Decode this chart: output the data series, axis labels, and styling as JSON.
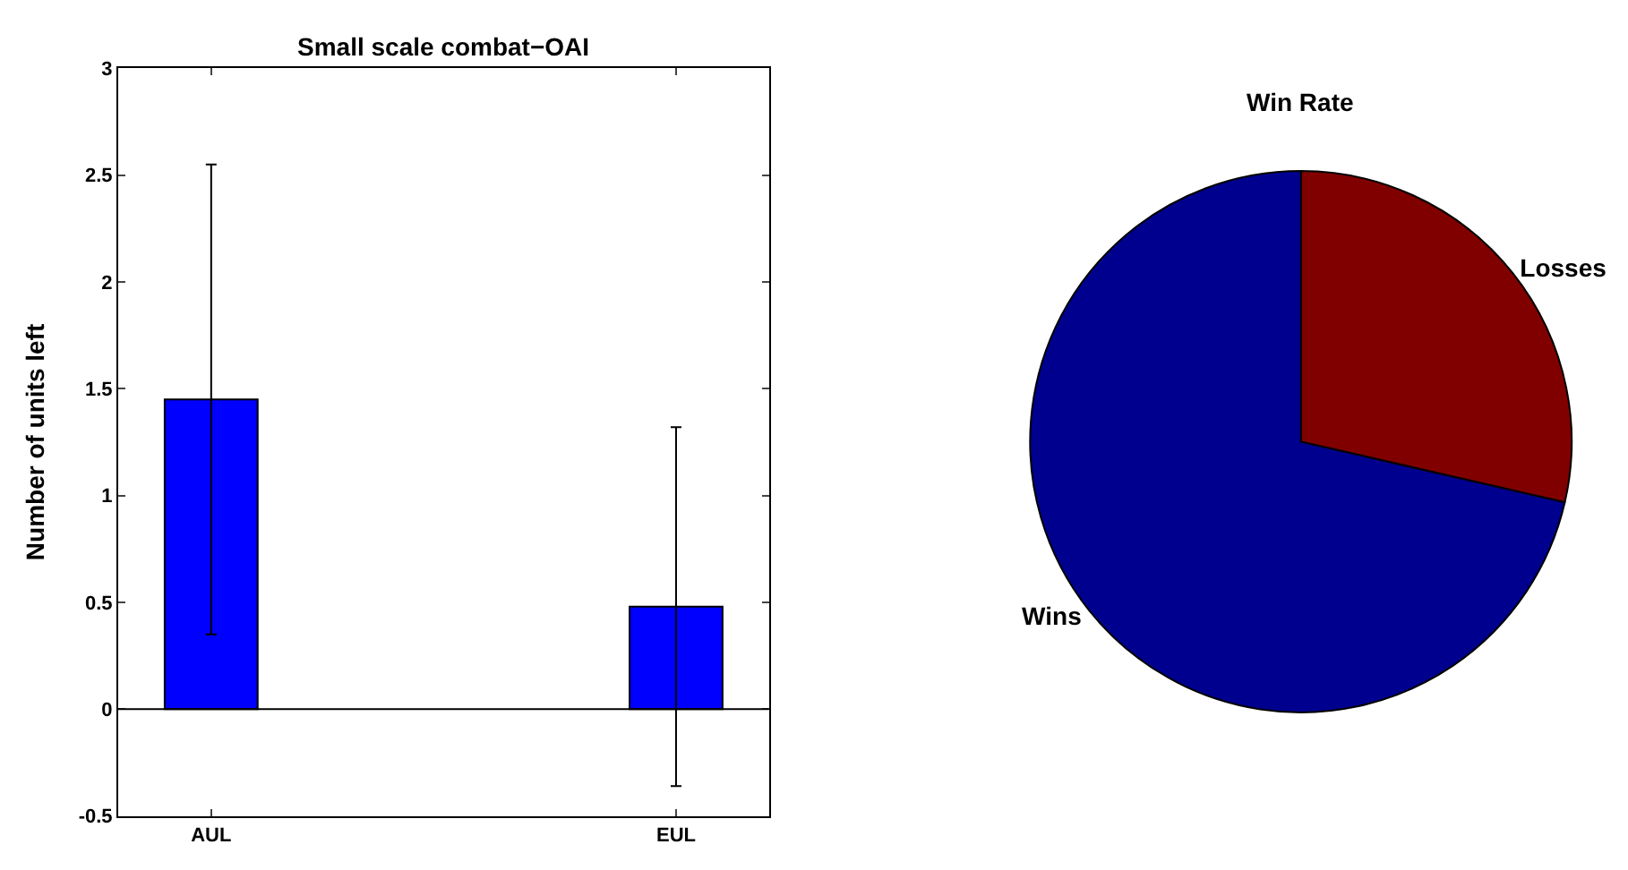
{
  "chart_data": [
    {
      "type": "bar",
      "title": "Small scale combat−OAI",
      "ylabel": "Number of units left",
      "categories": [
        "AUL",
        "EUL"
      ],
      "values": [
        1.45,
        0.48
      ],
      "color": "#0000ff",
      "errors": [
        [
          0.35,
          2.55
        ],
        [
          -0.36,
          1.32
        ]
      ],
      "ylim": [
        -0.5,
        3
      ],
      "yticks": [
        -0.5,
        0,
        0.5,
        1,
        1.5,
        2,
        2.5,
        3
      ],
      "ref_lines": [
        {
          "axis": "y",
          "value": 0,
          "color": "#000000"
        }
      ]
    },
    {
      "type": "pie",
      "title": "Win Rate",
      "categories": [
        "Losses",
        "Wins"
      ],
      "values": [
        28.6,
        71.4
      ],
      "colors": [
        "#800000",
        "#00008f"
      ]
    }
  ]
}
